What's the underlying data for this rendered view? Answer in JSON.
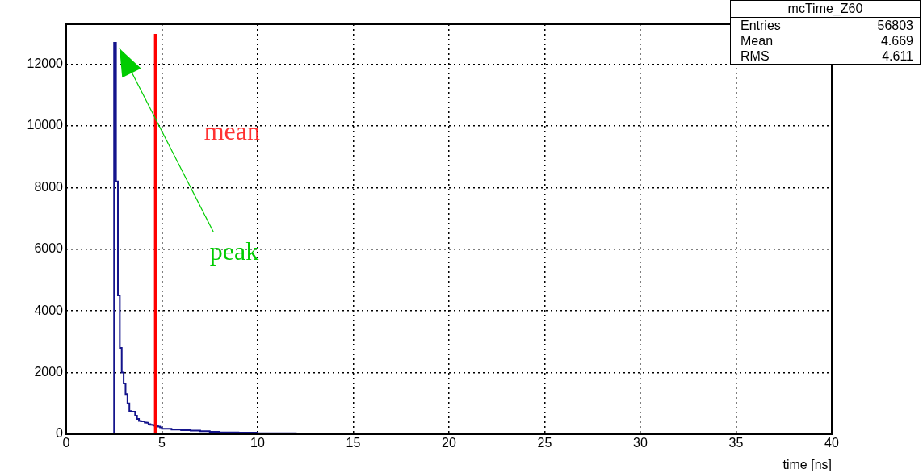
{
  "chart_data": {
    "type": "histogram",
    "xlabel": "time [ns]",
    "bins": [
      2.5,
      2.6,
      2.7,
      2.8,
      2.9,
      3.0,
      3.1,
      3.2,
      3.3,
      3.4,
      3.5,
      3.6,
      3.7,
      3.8,
      3.9,
      4.0,
      4.1,
      4.2,
      4.3,
      4.4,
      4.5,
      4.6,
      4.7,
      4.8,
      4.9,
      5.0,
      5.5,
      6.0,
      6.5,
      7.0,
      7.5,
      8.0,
      9.0,
      10.0,
      12.0,
      15.0,
      20.0,
      30.0,
      40.0
    ],
    "values": [
      1000,
      12700,
      8200,
      4500,
      2800,
      2000,
      1650,
      1300,
      1000,
      750,
      730,
      730,
      600,
      500,
      430,
      420,
      420,
      380,
      370,
      330,
      310,
      300,
      280,
      260,
      250,
      220,
      180,
      150,
      130,
      120,
      100,
      80,
      60,
      50,
      30,
      20,
      10,
      10
    ],
    "color": "#14148c",
    "xlim": [
      0,
      40
    ],
    "xticks": [
      0,
      5,
      10,
      15,
      20,
      25,
      30,
      35,
      40
    ],
    "ylim": [
      0,
      13300
    ],
    "yticks": [
      0,
      2000,
      4000,
      6000,
      8000,
      10000,
      12000
    ],
    "grid": true,
    "ref_lines": [
      {
        "axis": "x",
        "value": 4.669,
        "label": "mean",
        "color": "#ff0000"
      }
    ],
    "annotations": [
      {
        "text": "peak",
        "x": 2.65,
        "y": 12700
      },
      "mcTime_Z60",
      "Entries 56803",
      "Mean 4.669",
      "RMS 4.611"
    ]
  }
}
